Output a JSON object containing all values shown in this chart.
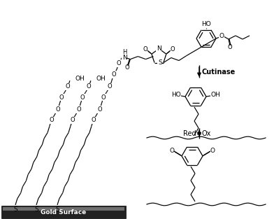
{
  "background_color": "#ffffff",
  "gold_text": "Gold Surface",
  "cutinase_label": "Cutinase",
  "red_label": "Red",
  "ox_label": "Ox",
  "fig_width": 3.92,
  "fig_height": 3.13,
  "dpi": 100
}
